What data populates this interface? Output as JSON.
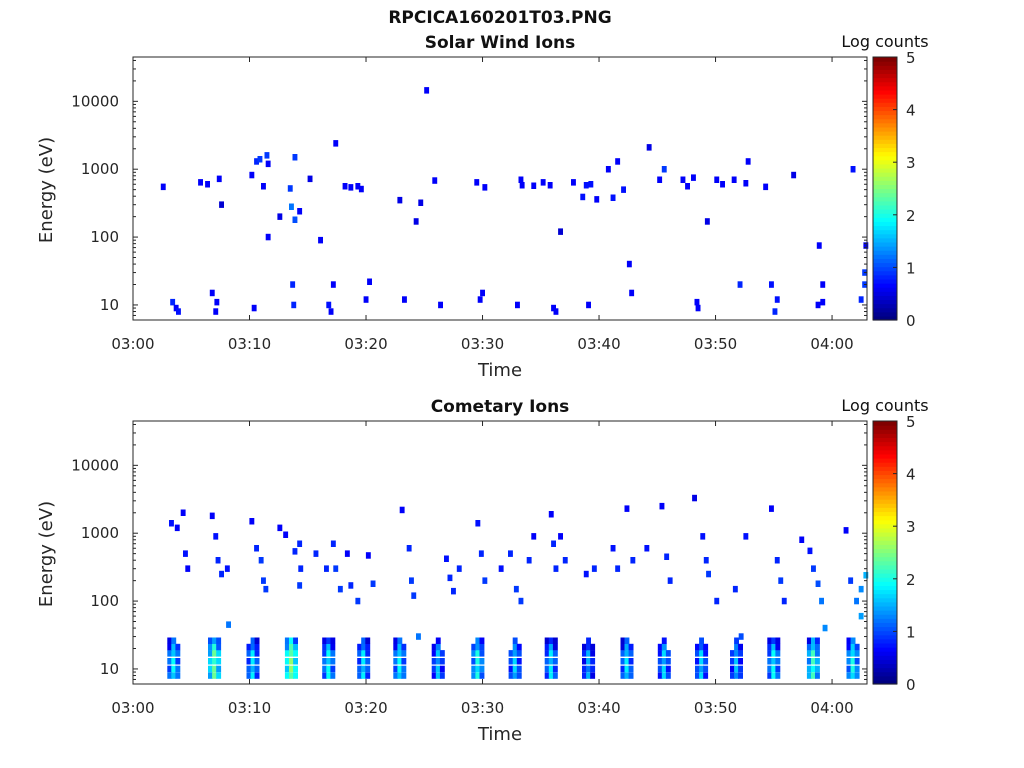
{
  "figure": {
    "title": "RPCICA160201T03.PNG"
  },
  "colorbar": {
    "label": "Log counts",
    "min": 0,
    "max": 5,
    "ticks": [
      "0",
      "1",
      "2",
      "3",
      "4",
      "5"
    ]
  },
  "chart_data": [
    {
      "type": "heatmap",
      "title": "Solar Wind Ions",
      "xlabel": "Time",
      "ylabel": "Energy (eV)",
      "y_scale": "log",
      "ylim": [
        6,
        45000
      ],
      "xlim": [
        "03:00",
        "04:03"
      ],
      "x_ticks": [
        "03:00",
        "03:10",
        "03:20",
        "03:30",
        "03:40",
        "03:50",
        "04:00"
      ],
      "y_ticks": [
        "10",
        "100",
        "1000",
        "10000"
      ],
      "grid": false,
      "cells": [
        [
          2.6,
          550,
          0.6
        ],
        [
          3.4,
          11,
          0.8
        ],
        [
          3.7,
          9,
          0.6
        ],
        [
          3.9,
          8,
          0.7
        ],
        [
          5.8,
          640,
          0.6
        ],
        [
          6.4,
          600,
          0.6
        ],
        [
          6.8,
          15,
          0.6
        ],
        [
          7.1,
          8,
          0.6
        ],
        [
          7.2,
          11,
          0.6
        ],
        [
          7.4,
          720,
          0.6
        ],
        [
          7.6,
          300,
          0.4
        ],
        [
          10.2,
          820,
          0.6
        ],
        [
          10.4,
          9,
          0.6
        ],
        [
          10.6,
          1300,
          0.8
        ],
        [
          10.9,
          1400,
          0.9
        ],
        [
          11.2,
          560,
          0.6
        ],
        [
          11.5,
          1600,
          0.9
        ],
        [
          11.6,
          1200,
          0.6
        ],
        [
          11.6,
          100,
          0.6
        ],
        [
          12.6,
          200,
          0.5
        ],
        [
          13.5,
          520,
          0.9
        ],
        [
          13.6,
          280,
          1.2
        ],
        [
          13.7,
          20,
          0.8
        ],
        [
          13.8,
          10,
          0.8
        ],
        [
          13.9,
          180,
          1.0
        ],
        [
          13.9,
          1500,
          0.9
        ],
        [
          14.3,
          240,
          0.6
        ],
        [
          15.2,
          720,
          0.5
        ],
        [
          16.1,
          90,
          0.6
        ],
        [
          16.8,
          10,
          0.7
        ],
        [
          17.0,
          8,
          0.6
        ],
        [
          17.2,
          20,
          0.6
        ],
        [
          17.4,
          2400,
          0.6
        ],
        [
          18.2,
          560,
          0.6
        ],
        [
          18.7,
          540,
          0.6
        ],
        [
          19.3,
          560,
          0.6
        ],
        [
          19.6,
          510,
          0.6
        ],
        [
          20.0,
          12,
          0.6
        ],
        [
          20.3,
          22,
          0.6
        ],
        [
          22.9,
          350,
          0.5
        ],
        [
          23.3,
          12,
          0.6
        ],
        [
          24.3,
          170,
          0.5
        ],
        [
          24.7,
          320,
          0.5
        ],
        [
          25.2,
          14500,
          0.6
        ],
        [
          25.9,
          680,
          0.6
        ],
        [
          26.4,
          10,
          0.6
        ],
        [
          29.5,
          640,
          0.6
        ],
        [
          29.8,
          12,
          0.6
        ],
        [
          30.0,
          15,
          0.6
        ],
        [
          30.2,
          540,
          0.6
        ],
        [
          33.0,
          10,
          0.6
        ],
        [
          33.3,
          700,
          0.6
        ],
        [
          33.4,
          580,
          0.6
        ],
        [
          34.4,
          570,
          0.6
        ],
        [
          35.2,
          640,
          0.6
        ],
        [
          35.8,
          580,
          0.6
        ],
        [
          36.1,
          9,
          0.6
        ],
        [
          36.3,
          8,
          0.6
        ],
        [
          36.7,
          120,
          0.4
        ],
        [
          37.8,
          640,
          0.6
        ],
        [
          38.6,
          390,
          0.7
        ],
        [
          38.9,
          580,
          0.7
        ],
        [
          39.3,
          600,
          0.7
        ],
        [
          39.1,
          10,
          0.6
        ],
        [
          39.8,
          360,
          0.6
        ],
        [
          40.8,
          1000,
          0.6
        ],
        [
          41.2,
          380,
          0.7
        ],
        [
          41.6,
          1300,
          0.6
        ],
        [
          42.1,
          500,
          0.7
        ],
        [
          42.6,
          40,
          0.6
        ],
        [
          42.8,
          15,
          0.6
        ],
        [
          44.3,
          2100,
          0.5
        ],
        [
          45.2,
          700,
          0.6
        ],
        [
          45.6,
          1000,
          0.9
        ],
        [
          47.2,
          700,
          0.6
        ],
        [
          47.6,
          560,
          0.6
        ],
        [
          48.1,
          750,
          0.6
        ],
        [
          48.4,
          11,
          0.6
        ],
        [
          48.5,
          9,
          0.6
        ],
        [
          49.3,
          170,
          0.5
        ],
        [
          50.1,
          700,
          0.6
        ],
        [
          50.6,
          600,
          0.6
        ],
        [
          51.6,
          700,
          0.6
        ],
        [
          52.1,
          20,
          0.8
        ],
        [
          52.6,
          620,
          0.6
        ],
        [
          52.8,
          1300,
          0.6
        ],
        [
          54.3,
          550,
          0.6
        ],
        [
          54.8,
          20,
          0.7
        ],
        [
          55.1,
          8,
          0.8
        ],
        [
          55.3,
          12,
          0.7
        ],
        [
          56.7,
          820,
          0.5
        ],
        [
          58.8,
          10,
          0.6
        ],
        [
          58.9,
          75,
          0.6
        ],
        [
          59.2,
          20,
          0.6
        ],
        [
          59.2,
          11,
          0.6
        ],
        [
          61.8,
          1000,
          0.7
        ],
        [
          62.5,
          12,
          0.8
        ],
        [
          62.8,
          20,
          0.9
        ],
        [
          62.9,
          75,
          0.6
        ],
        [
          62.8,
          30,
          0.9
        ]
      ]
    },
    {
      "type": "heatmap",
      "title": "Cometary Ions",
      "xlabel": "Time",
      "ylabel": "Energy (eV)",
      "y_scale": "log",
      "ylim": [
        6,
        45000
      ],
      "xlim": [
        "03:00",
        "04:03"
      ],
      "x_ticks": [
        "03:00",
        "03:10",
        "03:20",
        "03:30",
        "03:40",
        "03:50",
        "04:00"
      ],
      "y_ticks": [
        "10",
        "100",
        "1000",
        "10000"
      ],
      "grid": false,
      "burst_times": [
        3.5,
        7.0,
        10.3,
        13.6,
        16.8,
        19.8,
        22.9,
        26.2,
        29.6,
        32.8,
        35.9,
        39.1,
        42.4,
        45.6,
        48.8,
        51.8,
        55.0,
        58.4,
        61.8
      ],
      "burst_peaks": [
        1.9,
        2.4,
        1.8,
        2.6,
        1.9,
        1.8,
        1.9,
        1.6,
        2.0,
        1.7,
        1.8,
        1.5,
        1.8,
        1.7,
        1.7,
        1.6,
        1.9,
        2.2,
        2.0
      ],
      "cells": [
        [
          3.3,
          1400,
          0.7
        ],
        [
          3.8,
          1200,
          0.6
        ],
        [
          4.3,
          2000,
          0.6
        ],
        [
          4.5,
          500,
          0.7
        ],
        [
          4.7,
          300,
          0.6
        ],
        [
          6.8,
          1800,
          0.6
        ],
        [
          7.1,
          900,
          0.7
        ],
        [
          7.3,
          400,
          0.8
        ],
        [
          7.6,
          250,
          0.8
        ],
        [
          8.1,
          300,
          0.7
        ],
        [
          8.2,
          45,
          1.2
        ],
        [
          10.2,
          1500,
          0.6
        ],
        [
          10.6,
          600,
          0.8
        ],
        [
          11.0,
          400,
          0.9
        ],
        [
          11.2,
          200,
          0.9
        ],
        [
          11.4,
          150,
          0.9
        ],
        [
          12.6,
          1200,
          0.6
        ],
        [
          13.1,
          950,
          0.6
        ],
        [
          13.9,
          540,
          0.8
        ],
        [
          14.3,
          700,
          0.8
        ],
        [
          14.4,
          300,
          0.8
        ],
        [
          14.3,
          170,
          0.9
        ],
        [
          15.7,
          500,
          0.8
        ],
        [
          16.6,
          300,
          0.8
        ],
        [
          17.2,
          700,
          0.8
        ],
        [
          17.4,
          300,
          0.9
        ],
        [
          17.8,
          150,
          0.9
        ],
        [
          18.4,
          500,
          0.6
        ],
        [
          18.7,
          170,
          0.8
        ],
        [
          19.3,
          100,
          0.9
        ],
        [
          20.2,
          470,
          0.6
        ],
        [
          20.6,
          180,
          0.9
        ],
        [
          23.1,
          2200,
          0.6
        ],
        [
          23.7,
          600,
          0.8
        ],
        [
          23.9,
          200,
          0.9
        ],
        [
          24.1,
          120,
          0.9
        ],
        [
          24.5,
          30,
          1.2
        ],
        [
          26.9,
          420,
          0.7
        ],
        [
          27.2,
          220,
          0.8
        ],
        [
          27.5,
          140,
          0.8
        ],
        [
          28.0,
          300,
          0.8
        ],
        [
          29.6,
          1400,
          0.7
        ],
        [
          29.9,
          500,
          0.8
        ],
        [
          30.2,
          200,
          0.9
        ],
        [
          31.6,
          300,
          0.7
        ],
        [
          32.4,
          500,
          0.8
        ],
        [
          32.9,
          150,
          0.9
        ],
        [
          33.3,
          100,
          0.9
        ],
        [
          34.0,
          400,
          0.8
        ],
        [
          34.4,
          900,
          0.6
        ],
        [
          35.9,
          1900,
          0.6
        ],
        [
          36.1,
          700,
          0.8
        ],
        [
          36.3,
          300,
          0.8
        ],
        [
          36.7,
          900,
          0.6
        ],
        [
          37.1,
          400,
          0.8
        ],
        [
          38.9,
          250,
          0.7
        ],
        [
          39.6,
          300,
          0.8
        ],
        [
          41.2,
          600,
          0.7
        ],
        [
          41.6,
          300,
          0.8
        ],
        [
          42.4,
          2300,
          0.6
        ],
        [
          42.9,
          400,
          0.8
        ],
        [
          44.1,
          600,
          0.7
        ],
        [
          45.4,
          2500,
          0.6
        ],
        [
          45.8,
          450,
          0.8
        ],
        [
          46.1,
          200,
          0.8
        ],
        [
          48.2,
          3300,
          0.5
        ],
        [
          48.9,
          900,
          0.7
        ],
        [
          49.2,
          400,
          0.8
        ],
        [
          49.4,
          250,
          0.9
        ],
        [
          50.1,
          100,
          0.8
        ],
        [
          51.7,
          150,
          0.8
        ],
        [
          52.6,
          900,
          0.7
        ],
        [
          52.2,
          30,
          1.0
        ],
        [
          54.8,
          2300,
          0.6
        ],
        [
          55.3,
          400,
          0.8
        ],
        [
          55.6,
          200,
          0.9
        ],
        [
          55.9,
          100,
          0.8
        ],
        [
          57.4,
          800,
          0.6
        ],
        [
          58.1,
          550,
          0.7
        ],
        [
          58.4,
          300,
          0.9
        ],
        [
          58.8,
          180,
          1.0
        ],
        [
          59.1,
          100,
          1.2
        ],
        [
          59.4,
          40,
          1.3
        ],
        [
          61.2,
          1100,
          0.6
        ],
        [
          61.6,
          200,
          0.9
        ],
        [
          62.1,
          100,
          1.2
        ],
        [
          62.5,
          150,
          1.3
        ],
        [
          62.9,
          240,
          1.5
        ],
        [
          62.5,
          60,
          1.4
        ]
      ]
    }
  ]
}
